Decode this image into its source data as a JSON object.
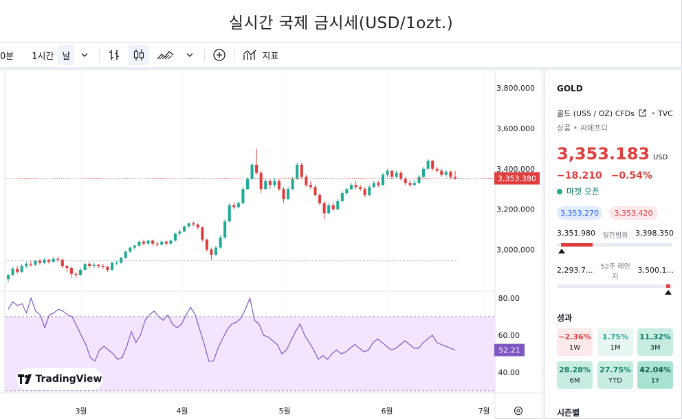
{
  "page": {
    "title": "실시간 국제 금시세(USD/1ozt.)"
  },
  "toolbar": {
    "interval_partial": "0분",
    "interval_1h": "1시간",
    "interval_day": "날",
    "indicators_label": "지표"
  },
  "chart": {
    "price_ticks": [
      "3,800.000",
      "3,600.000",
      "3,400.000",
      "3,200.000",
      "3,000.000"
    ],
    "current_price_label": "3,353.380",
    "rsi_ticks": [
      "80.00",
      "60.00",
      "40.00"
    ],
    "rsi_current_label": "52.21",
    "x_labels": [
      "3월",
      "4월",
      "5월",
      "6월",
      "7월"
    ],
    "watermark": "TradingView",
    "colors": {
      "up": "#22ab94",
      "down": "#e03e3e",
      "rsi": "#7e57c2",
      "rsi_band": "#f3e5ff"
    }
  },
  "chart_data": {
    "type": "candlestick",
    "ylim": [
      2880,
      3850
    ],
    "candles": [
      [
        2855,
        2875,
        2840,
        2880
      ],
      [
        2875,
        2905,
        2870,
        2915
      ],
      [
        2905,
        2890,
        2880,
        2920
      ],
      [
        2890,
        2920,
        2885,
        2930
      ],
      [
        2920,
        2930,
        2910,
        2940
      ],
      [
        2930,
        2925,
        2915,
        2945
      ],
      [
        2925,
        2945,
        2920,
        2950
      ],
      [
        2945,
        2935,
        2925,
        2955
      ],
      [
        2935,
        2950,
        2930,
        2960
      ],
      [
        2950,
        2940,
        2930,
        2955
      ],
      [
        2940,
        2955,
        2935,
        2965
      ],
      [
        2955,
        2950,
        2940,
        2965
      ],
      [
        2950,
        2920,
        2910,
        2955
      ],
      [
        2920,
        2910,
        2890,
        2925
      ],
      [
        2910,
        2880,
        2860,
        2915
      ],
      [
        2880,
        2875,
        2860,
        2890
      ],
      [
        2875,
        2900,
        2870,
        2910
      ],
      [
        2900,
        2930,
        2895,
        2935
      ],
      [
        2930,
        2920,
        2910,
        2940
      ],
      [
        2920,
        2925,
        2910,
        2935
      ],
      [
        2925,
        2920,
        2910,
        2930
      ],
      [
        2920,
        2915,
        2905,
        2930
      ],
      [
        2915,
        2900,
        2890,
        2920
      ],
      [
        2900,
        2935,
        2895,
        2940
      ],
      [
        2935,
        2935,
        2925,
        2945
      ],
      [
        2935,
        2960,
        2930,
        2965
      ],
      [
        2960,
        2990,
        2955,
        2995
      ],
      [
        2990,
        3010,
        2985,
        3015
      ],
      [
        3010,
        3020,
        3000,
        3025
      ],
      [
        3020,
        3040,
        3015,
        3045
      ],
      [
        3040,
        3030,
        3020,
        3050
      ],
      [
        3030,
        3045,
        3025,
        3050
      ],
      [
        3045,
        3030,
        3020,
        3050
      ],
      [
        3030,
        3025,
        3015,
        3040
      ],
      [
        3025,
        3040,
        3020,
        3045
      ],
      [
        3040,
        3030,
        3020,
        3045
      ],
      [
        3030,
        3045,
        3025,
        3050
      ],
      [
        3045,
        3080,
        3040,
        3085
      ],
      [
        3080,
        3090,
        3070,
        3100
      ],
      [
        3090,
        3115,
        3085,
        3120
      ],
      [
        3115,
        3130,
        3110,
        3135
      ],
      [
        3130,
        3125,
        3115,
        3140
      ],
      [
        3125,
        3110,
        3100,
        3130
      ],
      [
        3110,
        3050,
        3040,
        3115
      ],
      [
        3050,
        3000,
        2990,
        3055
      ],
      [
        3000,
        2975,
        2950,
        3010
      ],
      [
        2975,
        3010,
        2970,
        3020
      ],
      [
        3010,
        3060,
        3005,
        3070
      ],
      [
        3060,
        3140,
        3055,
        3150
      ],
      [
        3140,
        3220,
        3135,
        3230
      ],
      [
        3220,
        3210,
        3200,
        3235
      ],
      [
        3210,
        3230,
        3205,
        3240
      ],
      [
        3230,
        3300,
        3225,
        3310
      ],
      [
        3300,
        3350,
        3295,
        3360
      ],
      [
        3350,
        3420,
        3345,
        3430
      ],
      [
        3420,
        3380,
        3370,
        3500
      ],
      [
        3380,
        3300,
        3280,
        3390
      ],
      [
        3300,
        3340,
        3295,
        3350
      ],
      [
        3340,
        3320,
        3300,
        3350
      ],
      [
        3320,
        3340,
        3310,
        3355
      ],
      [
        3340,
        3300,
        3290,
        3350
      ],
      [
        3300,
        3250,
        3230,
        3310
      ],
      [
        3250,
        3300,
        3245,
        3310
      ],
      [
        3300,
        3350,
        3295,
        3360
      ],
      [
        3350,
        3420,
        3345,
        3430
      ],
      [
        3420,
        3360,
        3350,
        3430
      ],
      [
        3360,
        3320,
        3310,
        3370
      ],
      [
        3320,
        3310,
        3300,
        3340
      ],
      [
        3310,
        3270,
        3260,
        3320
      ],
      [
        3270,
        3230,
        3220,
        3280
      ],
      [
        3230,
        3180,
        3150,
        3240
      ],
      [
        3180,
        3220,
        3175,
        3230
      ],
      [
        3220,
        3200,
        3190,
        3235
      ],
      [
        3200,
        3240,
        3195,
        3250
      ],
      [
        3240,
        3280,
        3235,
        3290
      ],
      [
        3280,
        3300,
        3270,
        3305
      ],
      [
        3300,
        3320,
        3295,
        3330
      ],
      [
        3320,
        3310,
        3300,
        3340
      ],
      [
        3310,
        3300,
        3290,
        3320
      ],
      [
        3300,
        3270,
        3260,
        3310
      ],
      [
        3270,
        3310,
        3265,
        3320
      ],
      [
        3310,
        3330,
        3305,
        3340
      ],
      [
        3330,
        3320,
        3310,
        3340
      ],
      [
        3320,
        3370,
        3315,
        3380
      ],
      [
        3370,
        3390,
        3360,
        3400
      ],
      [
        3390,
        3360,
        3350,
        3395
      ],
      [
        3360,
        3380,
        3355,
        3390
      ],
      [
        3380,
        3350,
        3340,
        3390
      ],
      [
        3350,
        3330,
        3320,
        3360
      ],
      [
        3330,
        3320,
        3310,
        3345
      ],
      [
        3320,
        3330,
        3315,
        3345
      ],
      [
        3330,
        3360,
        3325,
        3370
      ],
      [
        3360,
        3400,
        3355,
        3410
      ],
      [
        3400,
        3440,
        3395,
        3450
      ],
      [
        3440,
        3400,
        3390,
        3445
      ],
      [
        3400,
        3390,
        3380,
        3410
      ],
      [
        3390,
        3370,
        3360,
        3400
      ],
      [
        3370,
        3385,
        3360,
        3395
      ],
      [
        3385,
        3360,
        3350,
        3390
      ],
      [
        3360,
        3353,
        3345,
        3390
      ]
    ],
    "dotted_level": 2945,
    "rsi": [
      74,
      78,
      76,
      77,
      72,
      80,
      73,
      71,
      64,
      71,
      72,
      74,
      73,
      71,
      70,
      65,
      60,
      55,
      48,
      46,
      52,
      54,
      52,
      50,
      47,
      48,
      54,
      62,
      56,
      60,
      68,
      71,
      73,
      70,
      68,
      71,
      66,
      64,
      66,
      71,
      75,
      71,
      63,
      55,
      46,
      46,
      53,
      58,
      63,
      66,
      67,
      69,
      74,
      80,
      68,
      66,
      60,
      59,
      57,
      55,
      50,
      52,
      57,
      62,
      66,
      60,
      56,
      52,
      47,
      49,
      47,
      50,
      52,
      50,
      51,
      53,
      55,
      53,
      51,
      52,
      56,
      58,
      56,
      54,
      52,
      53,
      55,
      57,
      55,
      53,
      53,
      56,
      58,
      60,
      56,
      55,
      54,
      53,
      52
    ],
    "rsi_band": [
      30,
      70
    ],
    "rsi_ylim": [
      20,
      90
    ]
  },
  "panel": {
    "symbol": "GOLD",
    "description": "골드 (USS / OZ) CFDs",
    "exchange": "TVC",
    "subdesc": "상품 • 씨에프디",
    "price": "3,353.183",
    "currency": "USD",
    "change": "−18.210",
    "change_pct": "−0.54%",
    "market_status": "마켓 오픈",
    "bid": "3,353.270",
    "ask": "3,353.420",
    "day_low": "3,351.980",
    "day_label": "일간범위",
    "day_high": "3,398.350",
    "day_range_pos": 0.0,
    "week52_low": "2,293.7...",
    "week52_label": "52주 레인지",
    "week52_high": "3,500.1...",
    "week52_pos": 0.97,
    "performance_title": "성과",
    "performance": [
      {
        "value": "−2.36%",
        "label": "1W",
        "tone": "neg"
      },
      {
        "value": "1.75%",
        "label": "1M",
        "tone": "pos1"
      },
      {
        "value": "11.32%",
        "label": "3M",
        "tone": "pos2"
      },
      {
        "value": "28.28%",
        "label": "6M",
        "tone": "pos2"
      },
      {
        "value": "27.75%",
        "label": "YTD",
        "tone": "pos2"
      },
      {
        "value": "42.04%",
        "label": "1Y",
        "tone": "pos3"
      }
    ],
    "seasonal_title": "시즌별"
  }
}
